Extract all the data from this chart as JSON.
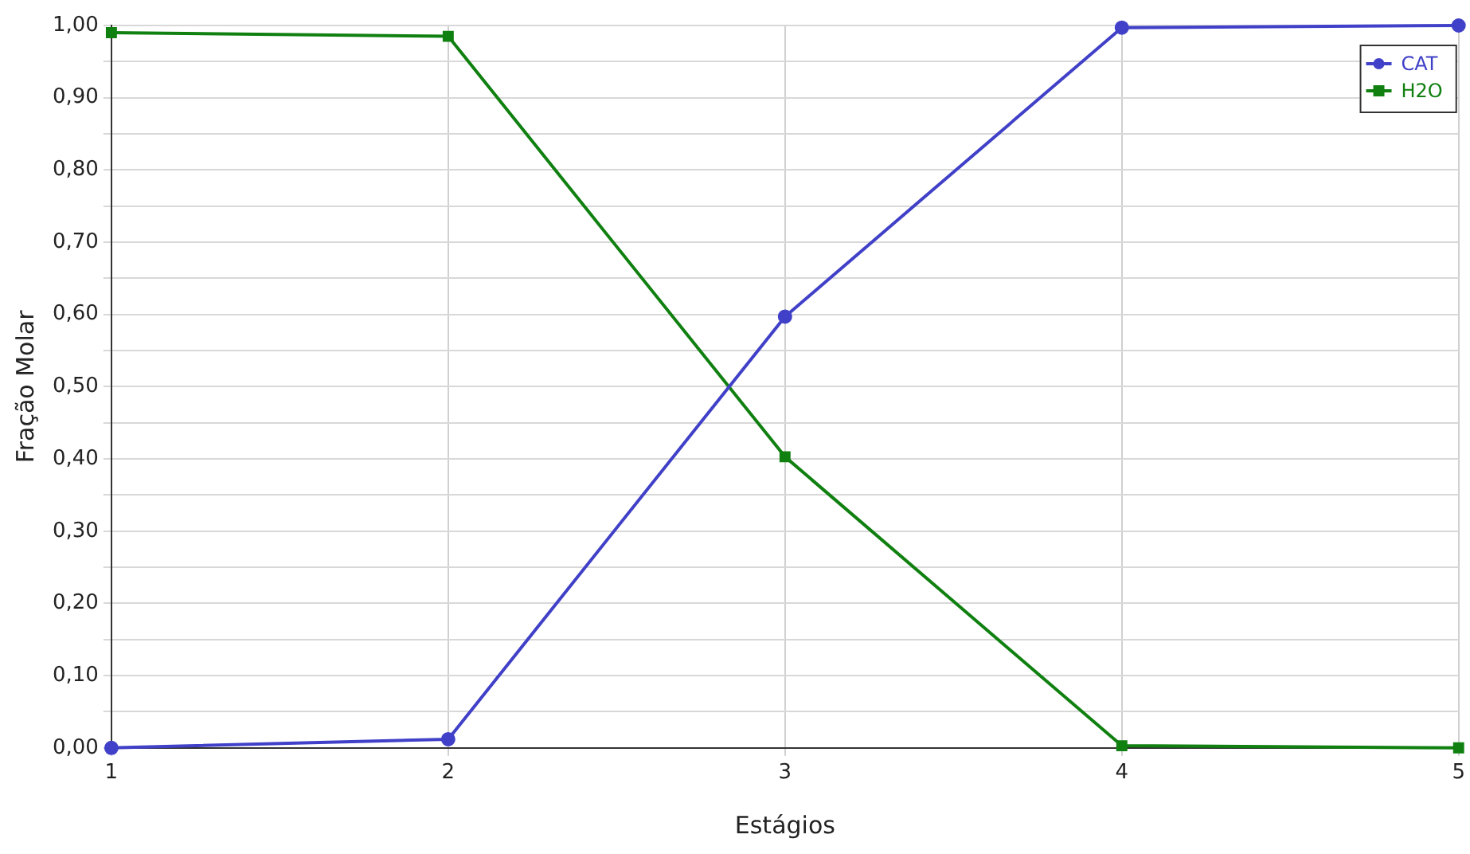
{
  "chart_data": {
    "type": "line",
    "xlabel": "Estágios",
    "ylabel": "Fração Molar",
    "x": [
      1,
      2,
      3,
      4,
      5
    ],
    "series": [
      {
        "name": "CAT",
        "color": "#4040c8",
        "marker": "circle",
        "values": [
          0.0,
          0.012,
          0.597,
          0.997,
          1.0
        ]
      },
      {
        "name": "H2O",
        "color": "#108010",
        "marker": "square",
        "values": [
          0.99,
          0.985,
          0.403,
          0.003,
          0.0
        ]
      }
    ],
    "xlim": [
      1,
      5
    ],
    "xticks": [
      1,
      2,
      3,
      4,
      5
    ],
    "ylim": [
      0,
      1
    ],
    "yticks": [
      {
        "value": 0,
        "label": "0,00"
      },
      {
        "value": 0.05,
        "label": null
      },
      {
        "value": 0.1,
        "label": "0,10"
      },
      {
        "value": 0.15,
        "label": null
      },
      {
        "value": 0.2,
        "label": "0,20"
      },
      {
        "value": 0.25,
        "label": null
      },
      {
        "value": 0.3,
        "label": "0,30"
      },
      {
        "value": 0.35,
        "label": null
      },
      {
        "value": 0.4,
        "label": "0,40"
      },
      {
        "value": 0.45,
        "label": null
      },
      {
        "value": 0.5,
        "label": "0,50"
      },
      {
        "value": 0.55,
        "label": null
      },
      {
        "value": 0.6,
        "label": "0,60"
      },
      {
        "value": 0.65,
        "label": null
      },
      {
        "value": 0.7,
        "label": "0,70"
      },
      {
        "value": 0.75,
        "label": null
      },
      {
        "value": 0.8,
        "label": "0,80"
      },
      {
        "value": 0.85,
        "label": null
      },
      {
        "value": 0.9,
        "label": "0,90"
      },
      {
        "value": 0.95,
        "label": null
      },
      {
        "value": 1,
        "label": "1,00"
      }
    ],
    "grid": true,
    "legend": "top right",
    "line_style": "solid"
  }
}
